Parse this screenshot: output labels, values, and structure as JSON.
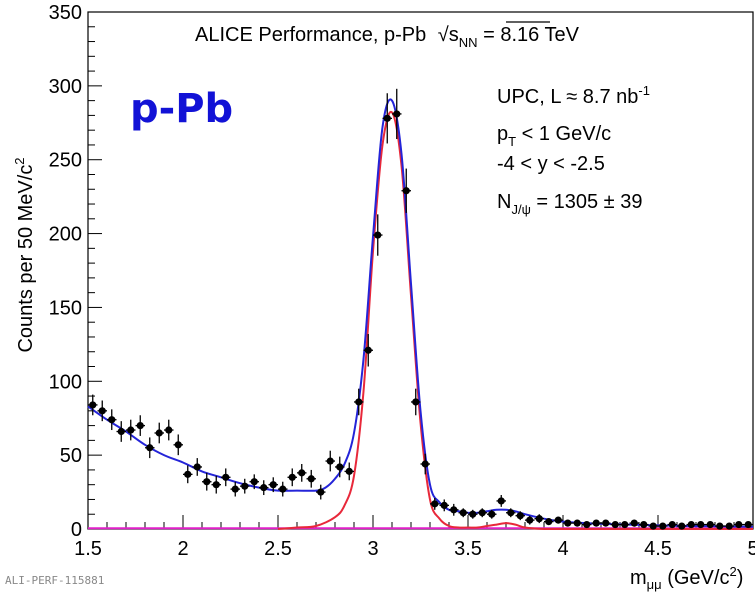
{
  "chart_data": {
    "type": "scatter",
    "title_prefix": "ALICE Performance, p-Pb ",
    "title_sqrt_s": "s",
    "title_sqrt_sub": "NN",
    "title_suffix": " = 8.16 TeV",
    "system_label": "p-Pb",
    "figure_ref": "ALI-PERF-115881",
    "xlabel_main": "m",
    "xlabel_sub": "μμ",
    "xlabel_unit": " (GeV/c",
    "xlabel_unit_sup": "2",
    "xlabel_close": ")",
    "ylabel_main": "Counts per 50 MeV/c",
    "ylabel_sup": "2",
    "xlim": [
      1.5,
      5.0
    ],
    "ylim": [
      0,
      350
    ],
    "x_ticks": [
      "1.5",
      "2",
      "2.5",
      "3",
      "3.5",
      "4",
      "4.5",
      "5"
    ],
    "y_ticks": [
      "0",
      "50",
      "100",
      "150",
      "200",
      "250",
      "300",
      "350"
    ],
    "annotations": {
      "upc_prefix": "UPC, L ≈ 8.7 nb",
      "upc_sup": "-1",
      "pt_p": "p",
      "pt_sub": "T",
      "pt_rest": " < 1 GeV/c",
      "rapidity": "-4 < y < -2.5",
      "n_main": "N",
      "n_sub": "J/ψ",
      "n_rest": " = 1305 ± 39"
    },
    "colors": {
      "data": "#000000",
      "total_fit": "#2424d8",
      "signal_fit": "#e8283a",
      "background_fit": "#e020c8",
      "system_label": "#1212d6"
    },
    "series": [
      {
        "kind": "data",
        "x": [
          1.525,
          1.575,
          1.625,
          1.675,
          1.725,
          1.775,
          1.825,
          1.875,
          1.925,
          1.975,
          2.025,
          2.075,
          2.125,
          2.175,
          2.225,
          2.275,
          2.325,
          2.375,
          2.425,
          2.475,
          2.525,
          2.575,
          2.625,
          2.675,
          2.725,
          2.775,
          2.825,
          2.875,
          2.925,
          2.975,
          3.025,
          3.075,
          3.125,
          3.175,
          3.225,
          3.275,
          3.325,
          3.375,
          3.425,
          3.475,
          3.525,
          3.575,
          3.625,
          3.675,
          3.725,
          3.775,
          3.825,
          3.875,
          3.925,
          3.975,
          4.025,
          4.075,
          4.125,
          4.175,
          4.225,
          4.275,
          4.325,
          4.375,
          4.425,
          4.475,
          4.525,
          4.575,
          4.625,
          4.675,
          4.725,
          4.775,
          4.825,
          4.875,
          4.925,
          4.975
        ],
        "y": [
          84,
          80,
          74,
          66,
          67,
          70,
          55,
          65,
          67,
          57,
          37,
          42,
          32,
          30,
          35,
          27,
          29,
          32,
          28,
          30,
          27,
          35,
          38,
          34,
          25,
          46,
          42,
          39,
          86,
          121,
          199,
          278,
          281,
          229,
          86,
          44,
          17,
          16,
          13,
          11,
          10,
          11,
          10,
          19,
          11,
          9,
          6,
          7,
          5,
          6,
          4,
          4,
          3,
          4,
          4,
          3,
          3,
          4,
          3,
          2,
          2,
          3,
          2,
          3,
          3,
          3,
          2,
          2,
          3,
          3
        ],
        "err": [
          7,
          7,
          7,
          7,
          7,
          7,
          7,
          7,
          7,
          7,
          6,
          6,
          6,
          6,
          6,
          5,
          5,
          5,
          5,
          5,
          5,
          6,
          6,
          6,
          5,
          7,
          7,
          6,
          9,
          11,
          14,
          17,
          17,
          15,
          9,
          7,
          4,
          4,
          4,
          3,
          3,
          3,
          3,
          4,
          3,
          3,
          3,
          3,
          2,
          2,
          2,
          2,
          2,
          2,
          2,
          2,
          2,
          2,
          2,
          2,
          2,
          2,
          2,
          2,
          2,
          2,
          2,
          2,
          2,
          2
        ]
      },
      {
        "kind": "background",
        "x": [
          1.5,
          5.0
        ],
        "y": [
          0.5,
          0.5
        ]
      },
      {
        "kind": "signal",
        "x": [
          2.5,
          2.6,
          2.7,
          2.8,
          2.85,
          2.9,
          2.95,
          3.0,
          3.05,
          3.1,
          3.15,
          3.2,
          3.25,
          3.3,
          3.35,
          3.4,
          3.45,
          3.5,
          3.55,
          3.6,
          3.65,
          3.7,
          3.75,
          3.8,
          3.9,
          4.0,
          5.0
        ],
        "y": [
          0,
          1,
          2,
          8,
          16,
          36,
          93,
          188,
          260,
          282,
          246,
          158,
          72,
          20,
          7,
          2,
          1,
          1,
          1,
          2,
          3,
          4,
          3,
          1,
          0,
          0,
          0
        ]
      },
      {
        "kind": "total",
        "x": [
          1.5,
          1.6,
          1.7,
          1.8,
          1.9,
          2.0,
          2.1,
          2.2,
          2.3,
          2.4,
          2.5,
          2.6,
          2.7,
          2.75,
          2.8,
          2.85,
          2.9,
          2.95,
          3.0,
          3.05,
          3.1,
          3.15,
          3.2,
          3.25,
          3.3,
          3.35,
          3.4,
          3.45,
          3.5,
          3.55,
          3.6,
          3.65,
          3.7,
          3.75,
          3.8,
          3.9,
          4.0,
          4.2,
          4.4,
          4.6,
          4.8,
          5.0
        ],
        "y": [
          83,
          74,
          66,
          57,
          50,
          45,
          39,
          35,
          31,
          28,
          26,
          26,
          26,
          28,
          34,
          44,
          65,
          115,
          198,
          272,
          290,
          254,
          166,
          80,
          30,
          18,
          13,
          12,
          11,
          11,
          12,
          13,
          13,
          12,
          10,
          7,
          5,
          3.5,
          2.8,
          2.2,
          1.8,
          1.5
        ]
      }
    ]
  }
}
